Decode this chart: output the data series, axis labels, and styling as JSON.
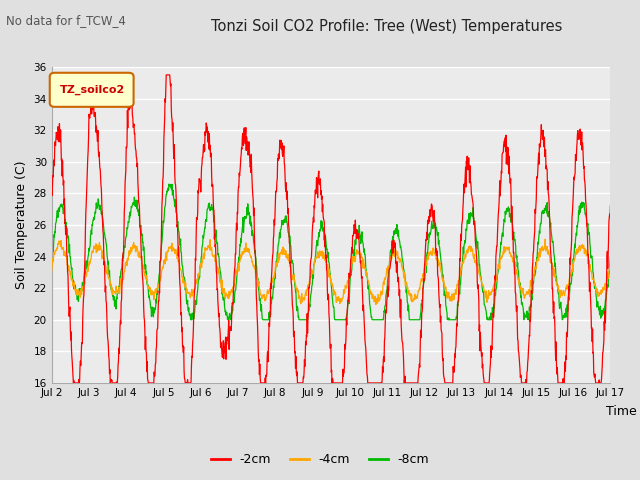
{
  "title": "Tonzi Soil CO2 Profile: Tree (West) Temperatures",
  "no_data_label": "No data for f_TCW_4",
  "ylabel": "Soil Temperature (C)",
  "xlabel": "Time",
  "ylim": [
    16,
    36
  ],
  "yticks": [
    16,
    18,
    20,
    22,
    24,
    26,
    28,
    30,
    32,
    34,
    36
  ],
  "xtick_labels": [
    "Jul 2",
    "Jul 3",
    "Jul 4",
    "Jul 5",
    "Jul 6",
    "Jul 7",
    "Jul 8",
    "Jul 9",
    "Jul 10",
    "Jul 11",
    "Jul 12",
    "Jul 13",
    "Jul 14",
    "Jul 15",
    "Jul 16",
    "Jul 17"
  ],
  "legend_label": "TZ_soilco2",
  "line_2cm_color": "#ff0000",
  "line_4cm_color": "#ffa500",
  "line_8cm_color": "#00bb00",
  "bg_color": "#e0e0e0",
  "plot_bg_color": "#ebebeb",
  "grid_color": "#ffffff",
  "n_days": 15
}
